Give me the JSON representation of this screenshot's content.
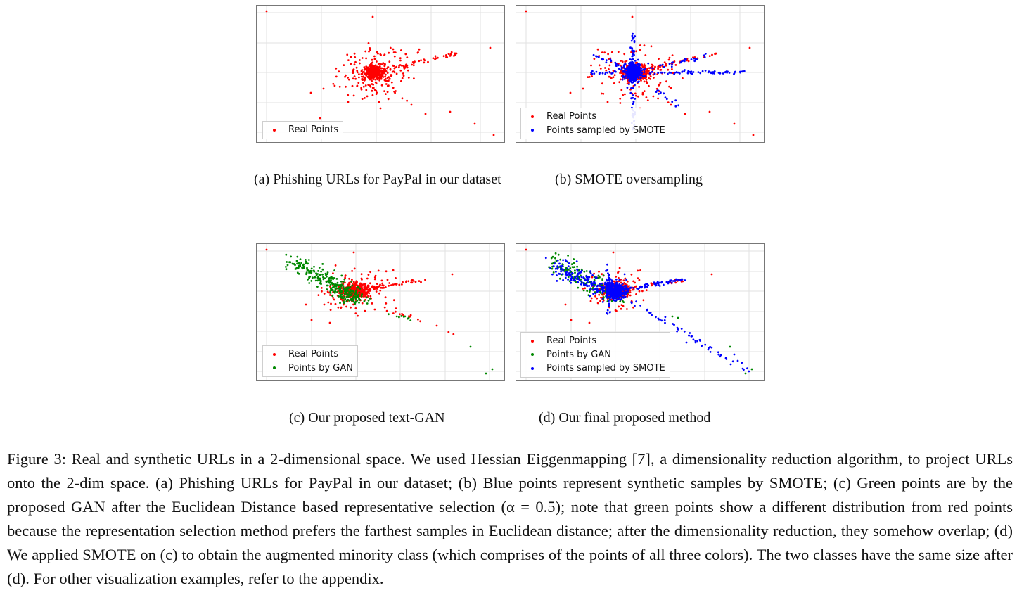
{
  "colors": {
    "real": "#ff0000",
    "gan": "#008800",
    "smote": "#0000ff",
    "grid": "#e2e2e2"
  },
  "panels": [
    {
      "id": "a",
      "legend": [
        "Real Points"
      ],
      "caption": "(a) Phishing URLs for PayPal in our dataset"
    },
    {
      "id": "b",
      "legend": [
        "Real Points",
        "Points sampled by SMOTE"
      ],
      "caption": "(b) SMOTE oversampling"
    },
    {
      "id": "c",
      "legend": [
        "Real Points",
        "Points by GAN"
      ],
      "caption": "(c) Our proposed text-GAN"
    },
    {
      "id": "d",
      "legend": [
        "Real Points",
        "Points by GAN",
        "Points sampled by SMOTE"
      ],
      "caption": "(d) Our final proposed method"
    }
  ],
  "figure_caption": "Figure 3: Real and synthetic URLs in a 2-dimensional space. We used Hessian Eiggenmapping [7], a dimensionality reduction algorithm, to project URLs onto the 2-dim space. (a) Phishing URLs for PayPal in our dataset; (b) Blue points represent synthetic samples by SMOTE; (c) Green points are by the proposed GAN after the Euclidean Distance based representative selection (α = 0.5); note that green points show a different distribution from red points because the representation selection method prefers the farthest samples in Euclidean distance; after the dimensionality reduction, they somehow overlap; (d) We applied SMOTE on (c) to obtain the augmented minority class (which comprises of the points of all three colors). The two classes have the same size after (d). For other visualization examples, refer to the appendix."
}
